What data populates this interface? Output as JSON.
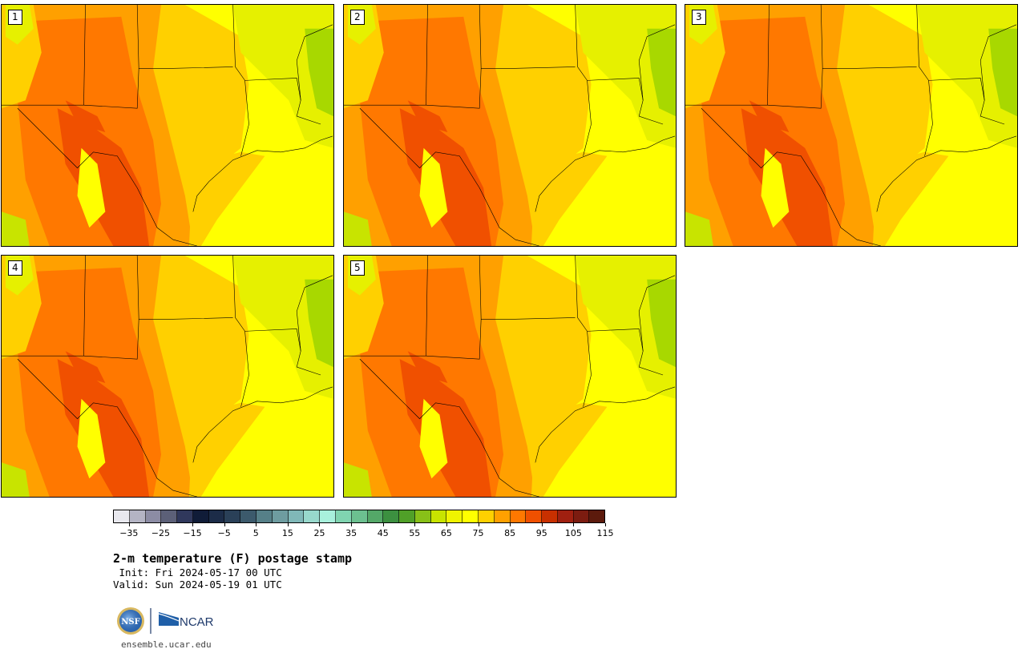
{
  "panels": [
    {
      "label": "1"
    },
    {
      "label": "2"
    },
    {
      "label": "3"
    },
    {
      "label": "4"
    },
    {
      "label": "5"
    }
  ],
  "colorbar": {
    "colors": [
      "#e8e8ee",
      "#b4b4c4",
      "#8c8ca4",
      "#5c6078",
      "#30385c",
      "#101c38",
      "#1c2c48",
      "#2a4058",
      "#3c5a6c",
      "#568088",
      "#6e9ca0",
      "#80b8b8",
      "#98d8cc",
      "#a8f0dc",
      "#80d4b0",
      "#6cc090",
      "#54a868",
      "#3c9040",
      "#50a028",
      "#88c018",
      "#c8e400",
      "#f0f400",
      "#ffff00",
      "#ffd000",
      "#ffa000",
      "#ff7800",
      "#f05000",
      "#c83000",
      "#a02010",
      "#7c1c10",
      "#5c1a0c"
    ],
    "ticks": [
      "−35",
      "−25",
      "−15",
      "−5",
      "5",
      "15",
      "25",
      "35",
      "45",
      "55",
      "65",
      "75",
      "85",
      "95",
      "105",
      "115"
    ],
    "min": -40,
    "max": 120
  },
  "title": "2-m temperature (F) postage stamp",
  "init": " Init: Fri 2024-05-17 00 UTC",
  "valid": "Valid: Sun 2024-05-19 01 UTC",
  "logo_nsf": "NSF",
  "logo_ncar": "NCAR",
  "url": "ensemble.ucar.edu"
}
